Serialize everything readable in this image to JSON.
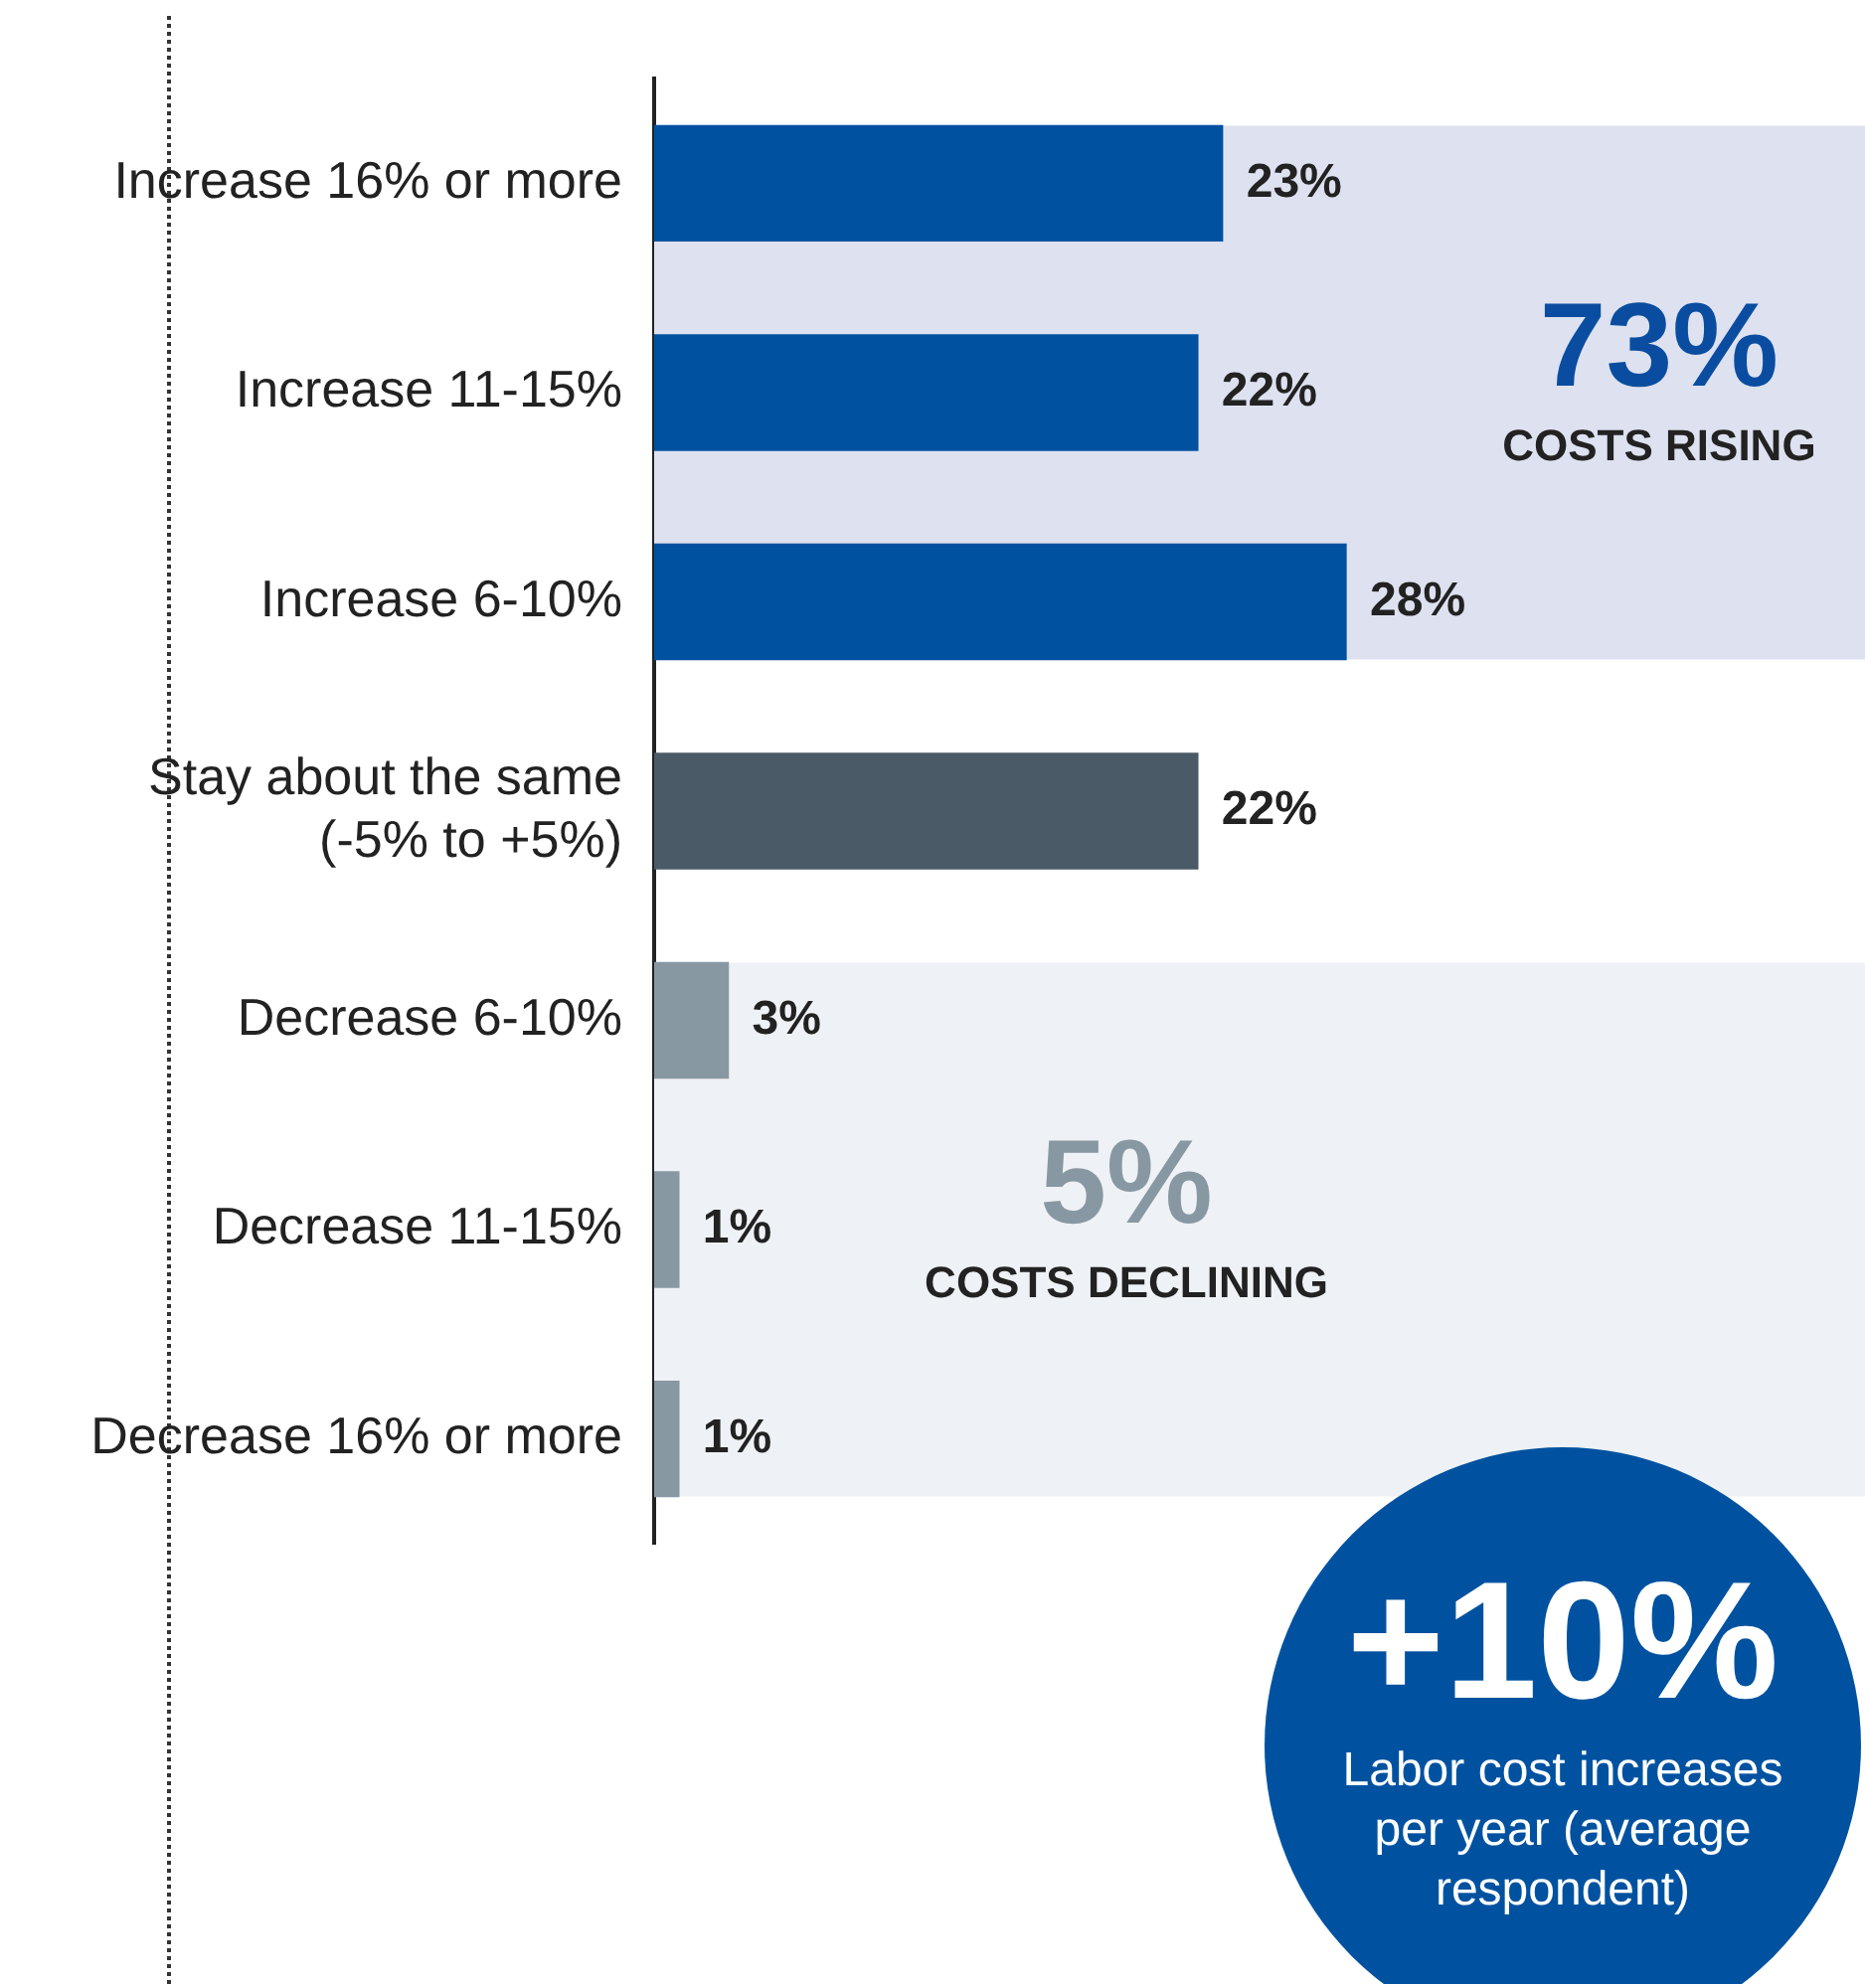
{
  "chart_data": {
    "type": "bar",
    "orientation": "horizontal",
    "categories": [
      "Increase 16% or more",
      "Increase 11-15%",
      "Increase 6-10%",
      "Stay about the same (-5% to +5%)",
      "Decrease 6-10%",
      "Decrease 11-15%",
      "Decrease 16% or more"
    ],
    "values": [
      23,
      22,
      28,
      22,
      3,
      1,
      1
    ],
    "value_labels": [
      "23%",
      "22%",
      "28%",
      "22%",
      "3%",
      "1%",
      "1%"
    ],
    "colors": [
      "#0052a0",
      "#0052a0",
      "#0052a0",
      "#4a5a66",
      "#8898a3",
      "#8898a3",
      "#8898a3"
    ],
    "xlim": [
      0,
      49
    ],
    "tick_labels": "y",
    "grid": false,
    "legend": false,
    "bands": [
      {
        "axis": "y",
        "from": "Increase 16% or more",
        "to": "Increase 6-10%",
        "label": "73%\nCOSTS RISING",
        "color": "#dde1f0"
      },
      {
        "axis": "y",
        "from": "Decrease 6-10%",
        "to": "Decrease 16% or more",
        "label": "5%\nCOSTS DECLINING",
        "color": "#eef1f5"
      }
    ],
    "annotations": [
      "+10%",
      "Labor cost increases per year (average respondent)"
    ]
  }
}
